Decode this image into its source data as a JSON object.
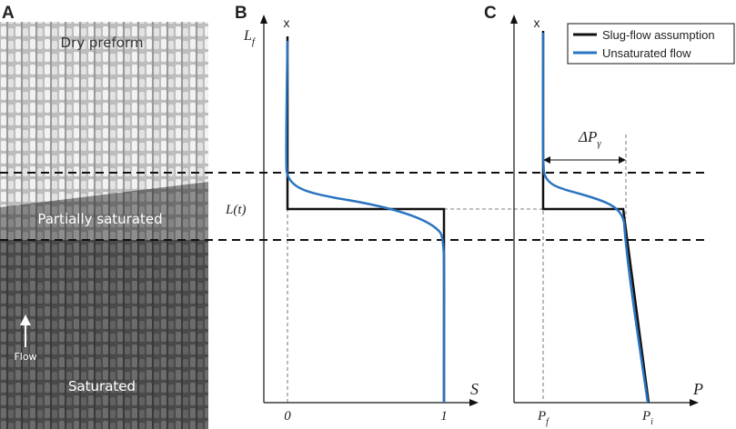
{
  "panels": {
    "a": "A",
    "b": "B",
    "c": "C"
  },
  "photo": {
    "region_top": "Dry preform",
    "region_middle": "Partially saturated",
    "region_bottom": "Saturated",
    "flow_label": "Flow"
  },
  "panel_b": {
    "y_axis_label": "x",
    "x_axis_label": "S",
    "lf_label_main": "L",
    "lf_label_sub": "f",
    "lt_label": "L(t)",
    "tick_0": "0",
    "tick_1": "1"
  },
  "panel_c": {
    "y_axis_label": "x",
    "x_axis_label": "P",
    "pf_main": "P",
    "pf_sub": "f",
    "pi_main": "P",
    "pi_sub": "i",
    "dp_main": "ΔP",
    "dp_sub": "γ"
  },
  "legend": [
    {
      "label": "Slug-flow assumption",
      "color": "#111111"
    },
    {
      "label": "Unsaturated flow",
      "color": "#2a74c0"
    }
  ]
}
